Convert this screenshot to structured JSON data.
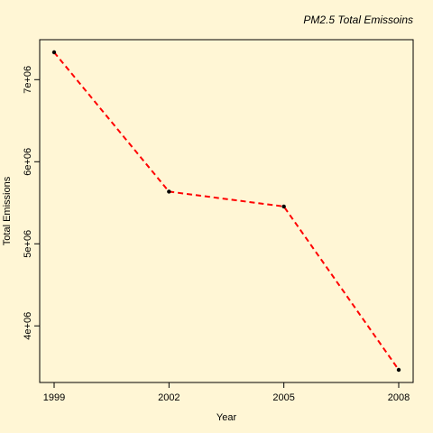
{
  "chart_data": {
    "type": "line",
    "title": "PM2.5 Total Emissoins",
    "xlabel": "Year",
    "ylabel": "Total Emissions",
    "x": [
      1999,
      2002,
      2005,
      2008
    ],
    "series": [
      {
        "values": [
          7332967,
          5635780,
          5454703,
          3464206
        ]
      }
    ],
    "x_ticks": [
      "1999",
      "2002",
      "2005",
      "2008"
    ],
    "y_ticks": [
      {
        "value": 4000000,
        "label": "4e+06"
      },
      {
        "value": 5000000,
        "label": "5e+06"
      },
      {
        "value": 6000000,
        "label": "6e+06"
      },
      {
        "value": 7000000,
        "label": "7e+06"
      }
    ],
    "xlim": [
      1999,
      2008
    ],
    "ylim": [
      3464206,
      7332967
    ],
    "grid": false,
    "colors": {
      "line": "#FF0000",
      "point": "#000000",
      "background": "#FFF6D5"
    }
  }
}
